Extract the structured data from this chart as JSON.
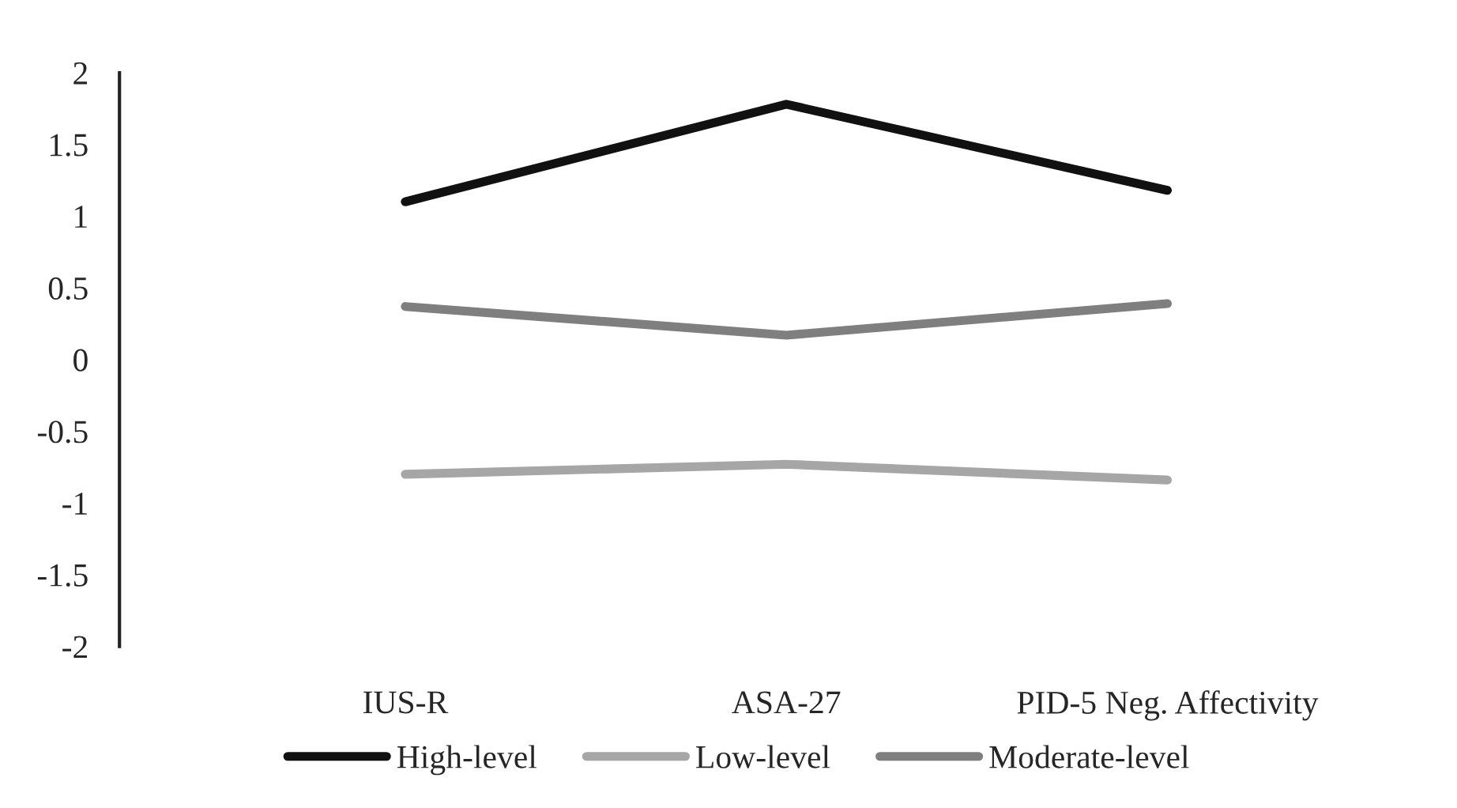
{
  "chart_data": {
    "type": "line",
    "categories": [
      "IUS-R",
      "ASA-27",
      "PID-5 Neg. Affectivity"
    ],
    "series": [
      {
        "name": "High-level",
        "color": "#111111",
        "values": [
          1.1,
          1.78,
          1.18
        ]
      },
      {
        "name": "Low-level",
        "color": "#a6a6a6",
        "values": [
          -0.8,
          -0.73,
          -0.84
        ]
      },
      {
        "name": "Moderate-level",
        "color": "#7f7f7f",
        "values": [
          0.37,
          0.17,
          0.39
        ]
      }
    ],
    "ylim": [
      -2,
      2
    ],
    "yticks": [
      2,
      1.5,
      1,
      0.5,
      0,
      -0.5,
      -1,
      -1.5,
      -2
    ],
    "grid": false,
    "legend": "bottom",
    "marker": "none",
    "line_style": "solid"
  }
}
